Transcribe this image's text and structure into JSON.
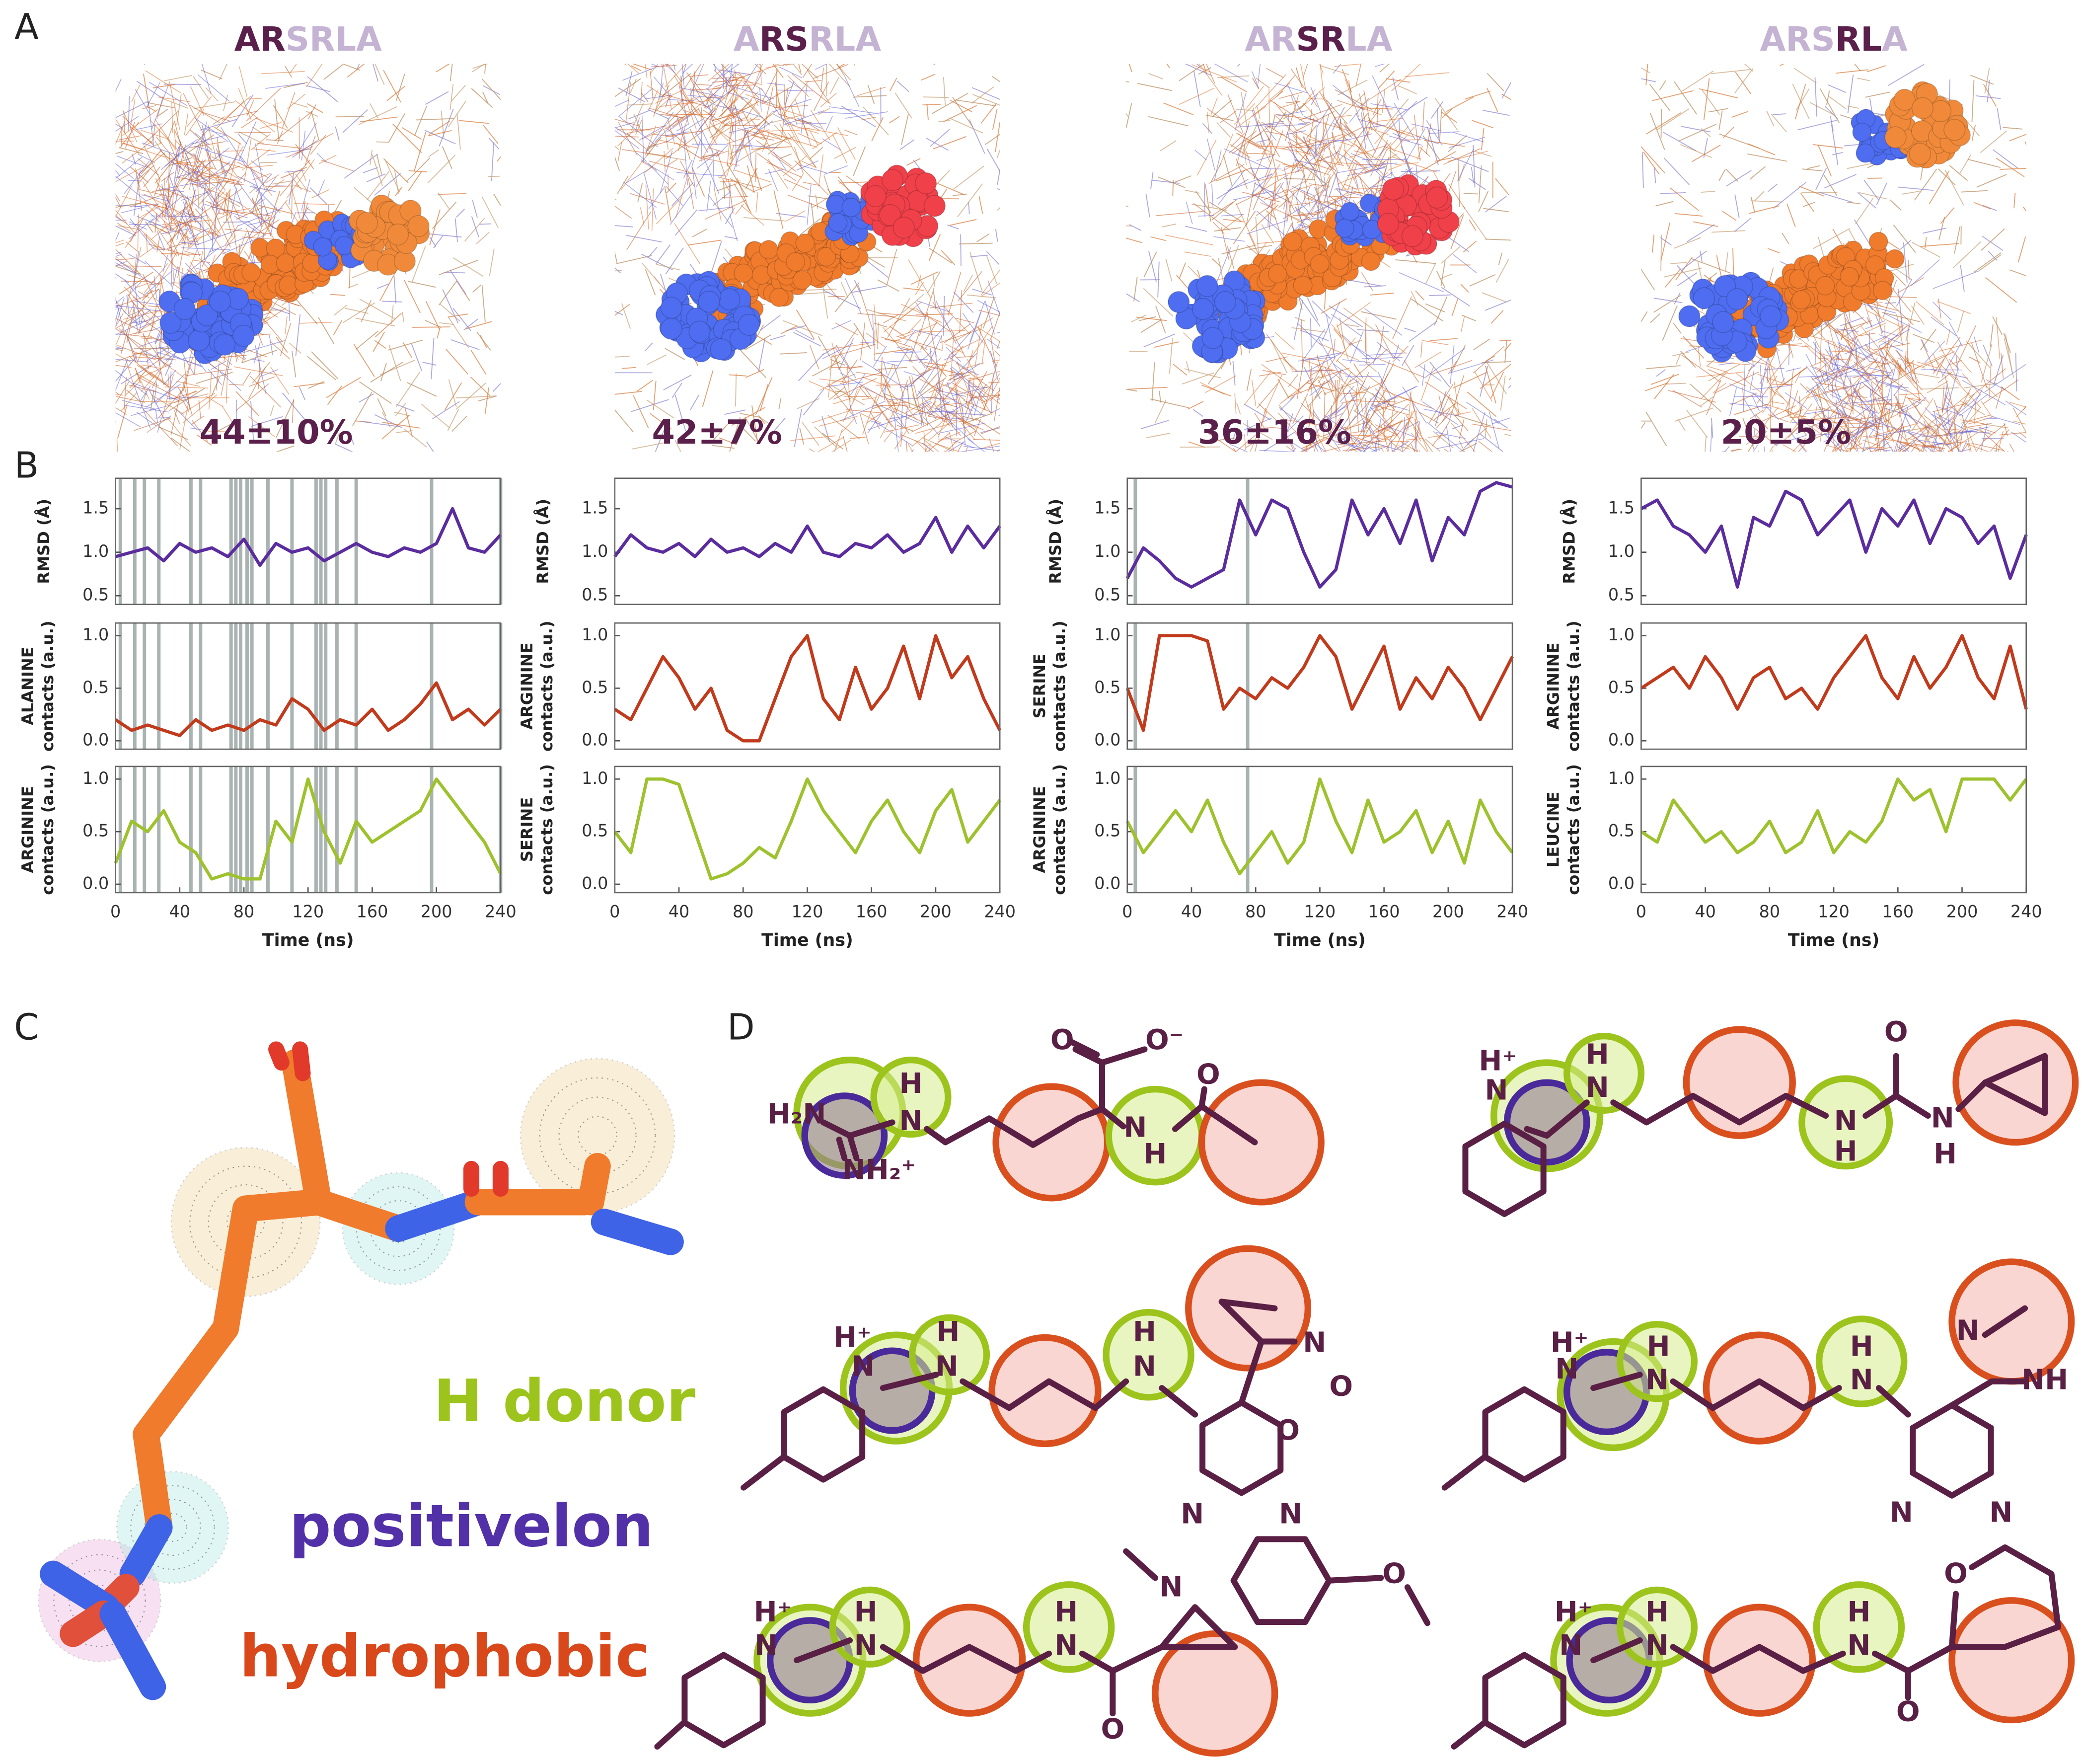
{
  "panel_labels": [
    "A",
    "B",
    "C",
    "D"
  ],
  "panel_a": [
    {
      "segments": [
        {
          "text": "AR",
          "highlight": true
        },
        {
          "text": "SRLA",
          "highlight": false
        }
      ],
      "percent": "44±10%"
    },
    {
      "segments": [
        {
          "text": "A",
          "highlight": false
        },
        {
          "text": "RS",
          "highlight": true
        },
        {
          "text": "RLA",
          "highlight": false
        }
      ],
      "percent": "42±7%"
    },
    {
      "segments": [
        {
          "text": "AR",
          "highlight": false
        },
        {
          "text": "SR",
          "highlight": true
        },
        {
          "text": "LA",
          "highlight": false
        }
      ],
      "percent": "36±16%"
    },
    {
      "segments": [
        {
          "text": "ARS",
          "highlight": false
        },
        {
          "text": "RL",
          "highlight": true
        },
        {
          "text": "A",
          "highlight": false
        }
      ],
      "percent": "20±5%"
    }
  ],
  "chart_data": [
    {
      "type": "line",
      "ylabel": "RMSD (Å)",
      "color": "#5b2c9e",
      "xlim": [
        0,
        240
      ],
      "ylim": [
        0.4,
        1.85
      ],
      "yticks": [
        0.5,
        {
          "value": 1,
          "label": "1.0"
        },
        1.5
      ],
      "x": [
        0,
        10,
        20,
        30,
        40,
        50,
        60,
        70,
        80,
        90,
        100,
        110,
        120,
        130,
        140,
        150,
        160,
        170,
        180,
        190,
        200,
        210,
        220,
        230,
        240
      ],
      "values": [
        0.95,
        1.0,
        1.05,
        0.9,
        1.1,
        1.0,
        1.05,
        0.95,
        1.15,
        0.85,
        1.1,
        1.0,
        1.05,
        0.9,
        1.0,
        1.1,
        1.0,
        0.95,
        1.05,
        1.0,
        1.1,
        1.5,
        1.05,
        1.0,
        1.2
      ],
      "bands": [
        3,
        12,
        18,
        27,
        47,
        53,
        72,
        75,
        78,
        82,
        85,
        95,
        110,
        125,
        128,
        131,
        138,
        150,
        197,
        240
      ]
    },
    {
      "type": "line",
      "ylabel": [
        "ALANINE",
        "contacts (a.u.)"
      ],
      "color": "#c23a1c",
      "xlim": [
        0,
        240
      ],
      "ylim": [
        -0.08,
        1.12
      ],
      "yticks": [
        {
          "value": 0,
          "label": "0.0"
        },
        0.5,
        {
          "value": 1,
          "label": "1.0"
        }
      ],
      "x": [
        0,
        10,
        20,
        30,
        40,
        50,
        60,
        70,
        80,
        90,
        100,
        110,
        120,
        130,
        140,
        150,
        160,
        170,
        180,
        190,
        200,
        210,
        220,
        230,
        240
      ],
      "values": [
        0.2,
        0.1,
        0.15,
        0.1,
        0.05,
        0.2,
        0.1,
        0.15,
        0.1,
        0.2,
        0.15,
        0.4,
        0.3,
        0.1,
        0.2,
        0.15,
        0.3,
        0.1,
        0.2,
        0.35,
        0.55,
        0.2,
        0.3,
        0.15,
        0.3
      ],
      "bands": [
        3,
        12,
        18,
        27,
        47,
        53,
        72,
        75,
        78,
        82,
        85,
        95,
        110,
        125,
        128,
        131,
        138,
        150,
        197,
        240
      ]
    },
    {
      "type": "line",
      "ylabel": [
        "ARGININE",
        "contacts (a.u.)"
      ],
      "color": "#9dc22d",
      "xlim": [
        0,
        240
      ],
      "ylim": [
        -0.08,
        1.12
      ],
      "yticks": [
        {
          "value": 0,
          "label": "0.0"
        },
        0.5,
        {
          "value": 1,
          "label": "1.0"
        }
      ],
      "xticks": [
        0,
        40,
        80,
        120,
        160,
        200,
        240
      ],
      "xlabel": "Time (ns)",
      "x": [
        0,
        10,
        20,
        30,
        40,
        50,
        60,
        70,
        80,
        90,
        100,
        110,
        120,
        130,
        140,
        150,
        160,
        170,
        180,
        190,
        200,
        210,
        220,
        230,
        240
      ],
      "values": [
        0.2,
        0.6,
        0.5,
        0.7,
        0.4,
        0.3,
        0.05,
        0.1,
        0.05,
        0.05,
        0.6,
        0.4,
        1.0,
        0.5,
        0.2,
        0.6,
        0.4,
        0.5,
        0.6,
        0.7,
        1.0,
        0.8,
        0.6,
        0.4,
        0.1
      ],
      "bands": [
        3,
        12,
        18,
        27,
        47,
        53,
        72,
        75,
        78,
        82,
        85,
        95,
        110,
        125,
        128,
        131,
        138,
        150,
        197,
        240
      ]
    },
    {
      "type": "line",
      "ylabel": "RMSD (Å)",
      "color": "#5b2c9e",
      "xlim": [
        0,
        240
      ],
      "ylim": [
        0.4,
        1.85
      ],
      "yticks": [
        0.5,
        {
          "value": 1,
          "label": "1.0"
        },
        1.5
      ],
      "x": [
        0,
        10,
        20,
        30,
        40,
        50,
        60,
        70,
        80,
        90,
        100,
        110,
        120,
        130,
        140,
        150,
        160,
        170,
        180,
        190,
        200,
        210,
        220,
        230,
        240
      ],
      "values": [
        0.95,
        1.2,
        1.05,
        1.0,
        1.1,
        0.95,
        1.15,
        1.0,
        1.05,
        0.95,
        1.1,
        1.0,
        1.3,
        1.0,
        0.95,
        1.1,
        1.05,
        1.2,
        1.0,
        1.1,
        1.4,
        1.0,
        1.3,
        1.05,
        1.3
      ]
    },
    {
      "type": "line",
      "ylabel": [
        "ARGININE",
        "contacts (a.u.)"
      ],
      "color": "#c23a1c",
      "xlim": [
        0,
        240
      ],
      "ylim": [
        -0.08,
        1.12
      ],
      "yticks": [
        {
          "value": 0,
          "label": "0.0"
        },
        0.5,
        {
          "value": 1,
          "label": "1.0"
        }
      ],
      "x": [
        0,
        10,
        20,
        30,
        40,
        50,
        60,
        70,
        80,
        90,
        100,
        110,
        120,
        130,
        140,
        150,
        160,
        170,
        180,
        190,
        200,
        210,
        220,
        230,
        240
      ],
      "values": [
        0.3,
        0.2,
        0.5,
        0.8,
        0.6,
        0.3,
        0.5,
        0.1,
        0.0,
        0.0,
        0.4,
        0.8,
        1.0,
        0.4,
        0.2,
        0.7,
        0.3,
        0.5,
        0.9,
        0.4,
        1.0,
        0.6,
        0.8,
        0.4,
        0.1
      ]
    },
    {
      "type": "line",
      "ylabel": [
        "SERINE",
        "contacts (a.u.)"
      ],
      "color": "#9dc22d",
      "xlim": [
        0,
        240
      ],
      "ylim": [
        -0.08,
        1.12
      ],
      "yticks": [
        {
          "value": 0,
          "label": "0.0"
        },
        0.5,
        {
          "value": 1,
          "label": "1.0"
        }
      ],
      "xticks": [
        0,
        40,
        80,
        120,
        160,
        200,
        240
      ],
      "xlabel": "Time (ns)",
      "x": [
        0,
        10,
        20,
        30,
        40,
        50,
        60,
        70,
        80,
        90,
        100,
        110,
        120,
        130,
        140,
        150,
        160,
        170,
        180,
        190,
        200,
        210,
        220,
        230,
        240
      ],
      "values": [
        0.5,
        0.3,
        1.0,
        1.0,
        0.95,
        0.5,
        0.05,
        0.1,
        0.2,
        0.35,
        0.25,
        0.6,
        1.0,
        0.7,
        0.5,
        0.3,
        0.6,
        0.8,
        0.5,
        0.3,
        0.7,
        0.9,
        0.4,
        0.6,
        0.8
      ]
    },
    {
      "type": "line",
      "ylabel": "RMSD (Å)",
      "color": "#5b2c9e",
      "xlim": [
        0,
        240
      ],
      "ylim": [
        0.4,
        1.85
      ],
      "yticks": [
        0.5,
        {
          "value": 1,
          "label": "1.0"
        },
        1.5
      ],
      "x": [
        0,
        10,
        20,
        30,
        40,
        50,
        60,
        70,
        80,
        90,
        100,
        110,
        120,
        130,
        140,
        150,
        160,
        170,
        180,
        190,
        200,
        210,
        220,
        230,
        240
      ],
      "values": [
        0.7,
        1.05,
        0.9,
        0.7,
        0.6,
        0.7,
        0.8,
        1.6,
        1.2,
        1.6,
        1.5,
        1.0,
        0.6,
        0.8,
        1.6,
        1.2,
        1.5,
        1.1,
        1.6,
        0.9,
        1.4,
        1.2,
        1.7,
        1.8,
        1.75
      ],
      "bands": [
        5,
        75
      ]
    },
    {
      "type": "line",
      "ylabel": [
        "SERINE",
        "contacts (a.u.)"
      ],
      "color": "#c23a1c",
      "xlim": [
        0,
        240
      ],
      "ylim": [
        -0.08,
        1.12
      ],
      "yticks": [
        {
          "value": 0,
          "label": "0.0"
        },
        0.5,
        {
          "value": 1,
          "label": "1.0"
        }
      ],
      "x": [
        0,
        10,
        20,
        30,
        40,
        50,
        60,
        70,
        80,
        90,
        100,
        110,
        120,
        130,
        140,
        150,
        160,
        170,
        180,
        190,
        200,
        210,
        220,
        230,
        240
      ],
      "values": [
        0.5,
        0.1,
        1.0,
        1.0,
        1.0,
        0.95,
        0.3,
        0.5,
        0.4,
        0.6,
        0.5,
        0.7,
        1.0,
        0.8,
        0.3,
        0.6,
        0.9,
        0.3,
        0.6,
        0.4,
        0.7,
        0.5,
        0.2,
        0.5,
        0.8
      ],
      "bands": [
        5,
        75
      ]
    },
    {
      "type": "line",
      "ylabel": [
        "ARGININE",
        "contacts (a.u.)"
      ],
      "color": "#9dc22d",
      "xlim": [
        0,
        240
      ],
      "ylim": [
        -0.08,
        1.12
      ],
      "yticks": [
        {
          "value": 0,
          "label": "0.0"
        },
        0.5,
        {
          "value": 1,
          "label": "1.0"
        }
      ],
      "xticks": [
        0,
        40,
        80,
        120,
        160,
        200,
        240
      ],
      "xlabel": "Time (ns)",
      "x": [
        0,
        10,
        20,
        30,
        40,
        50,
        60,
        70,
        80,
        90,
        100,
        110,
        120,
        130,
        140,
        150,
        160,
        170,
        180,
        190,
        200,
        210,
        220,
        230,
        240
      ],
      "values": [
        0.6,
        0.3,
        0.5,
        0.7,
        0.5,
        0.8,
        0.4,
        0.1,
        0.3,
        0.5,
        0.2,
        0.4,
        1.0,
        0.6,
        0.3,
        0.8,
        0.4,
        0.5,
        0.7,
        0.3,
        0.6,
        0.2,
        0.8,
        0.5,
        0.3
      ],
      "bands": [
        5,
        75
      ]
    },
    {
      "type": "line",
      "ylabel": "RMSD (Å)",
      "color": "#5b2c9e",
      "xlim": [
        0,
        240
      ],
      "ylim": [
        0.4,
        1.85
      ],
      "yticks": [
        0.5,
        {
          "value": 1,
          "label": "1.0"
        },
        1.5
      ],
      "x": [
        0,
        10,
        20,
        30,
        40,
        50,
        60,
        70,
        80,
        90,
        100,
        110,
        120,
        130,
        140,
        150,
        160,
        170,
        180,
        190,
        200,
        210,
        220,
        230,
        240
      ],
      "values": [
        1.5,
        1.6,
        1.3,
        1.2,
        1.0,
        1.3,
        0.6,
        1.4,
        1.3,
        1.7,
        1.6,
        1.2,
        1.4,
        1.6,
        1.0,
        1.5,
        1.3,
        1.6,
        1.1,
        1.5,
        1.4,
        1.1,
        1.3,
        0.7,
        1.2
      ]
    },
    {
      "type": "line",
      "ylabel": [
        "ARGININE",
        "contacts (a.u.)"
      ],
      "color": "#c23a1c",
      "xlim": [
        0,
        240
      ],
      "ylim": [
        -0.08,
        1.12
      ],
      "yticks": [
        {
          "value": 0,
          "label": "0.0"
        },
        0.5,
        {
          "value": 1,
          "label": "1.0"
        }
      ],
      "x": [
        0,
        10,
        20,
        30,
        40,
        50,
        60,
        70,
        80,
        90,
        100,
        110,
        120,
        130,
        140,
        150,
        160,
        170,
        180,
        190,
        200,
        210,
        220,
        230,
        240
      ],
      "values": [
        0.5,
        0.6,
        0.7,
        0.5,
        0.8,
        0.6,
        0.3,
        0.6,
        0.7,
        0.4,
        0.5,
        0.3,
        0.6,
        0.8,
        1.0,
        0.6,
        0.4,
        0.8,
        0.5,
        0.7,
        1.0,
        0.6,
        0.4,
        0.9,
        0.3
      ]
    },
    {
      "type": "line",
      "ylabel": [
        "LEUCINE",
        "contacts (a.u.)"
      ],
      "color": "#9dc22d",
      "xlim": [
        0,
        240
      ],
      "ylim": [
        -0.08,
        1.12
      ],
      "yticks": [
        {
          "value": 0,
          "label": "0.0"
        },
        0.5,
        {
          "value": 1,
          "label": "1.0"
        }
      ],
      "xticks": [
        0,
        40,
        80,
        120,
        160,
        200,
        240
      ],
      "xlabel": "Time (ns)",
      "x": [
        0,
        10,
        20,
        30,
        40,
        50,
        60,
        70,
        80,
        90,
        100,
        110,
        120,
        130,
        140,
        150,
        160,
        170,
        180,
        190,
        200,
        210,
        220,
        230,
        240
      ],
      "values": [
        0.5,
        0.4,
        0.8,
        0.6,
        0.4,
        0.5,
        0.3,
        0.4,
        0.6,
        0.3,
        0.4,
        0.7,
        0.3,
        0.5,
        0.4,
        0.6,
        1.0,
        0.8,
        0.9,
        0.5,
        1.0,
        1.0,
        1.0,
        0.8,
        1.0
      ]
    }
  ],
  "panel_c": {
    "legend": [
      {
        "text": "H donor",
        "color": "#9cc41c"
      },
      {
        "text": "positivelon",
        "color": "#5230a8"
      },
      {
        "text": "hydrophobic",
        "color": "#d9481b"
      }
    ]
  },
  "panel_d": {
    "molecules": [
      {
        "atoms": [
          "H₂N",
          "H",
          "N",
          "NH₂⁺",
          "O",
          "O⁻",
          "O",
          "N",
          "H"
        ]
      },
      {
        "atoms": [
          "H⁺",
          "N",
          "H",
          "N",
          "N",
          "H",
          "O",
          "N",
          "H"
        ]
      },
      {
        "atoms": [
          "H⁺",
          "N",
          "H",
          "N",
          "H",
          "N",
          "N",
          "O",
          "O",
          "N",
          "N"
        ]
      },
      {
        "atoms": [
          "H⁺",
          "N",
          "H",
          "N",
          "H",
          "N",
          "N",
          "NH",
          "N",
          "N"
        ]
      },
      {
        "atoms": [
          "H⁺",
          "N",
          "H",
          "N",
          "H",
          "N",
          "N",
          "O",
          "O"
        ]
      },
      {
        "atoms": [
          "H⁺",
          "N",
          "H",
          "N",
          "H",
          "N",
          "O",
          "O"
        ]
      }
    ]
  }
}
